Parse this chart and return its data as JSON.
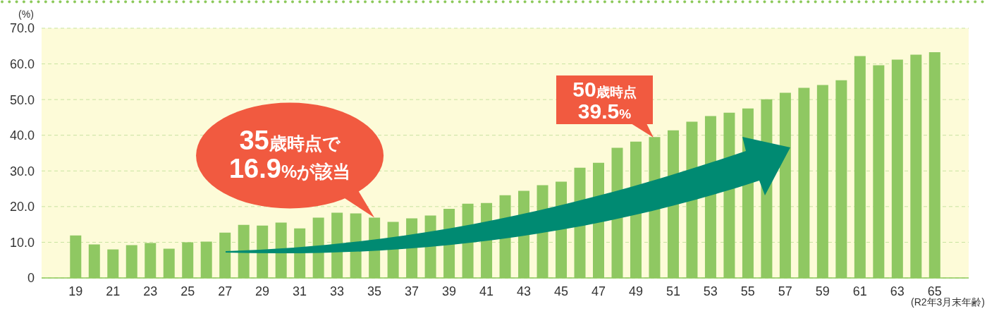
{
  "chart_data": {
    "type": "bar",
    "ylabel": "(%)",
    "categories": [
      "19",
      null,
      "21",
      null,
      "23",
      null,
      "25",
      null,
      "27",
      null,
      "29",
      null,
      "31",
      null,
      "33",
      null,
      "35",
      null,
      "37",
      null,
      "39",
      null,
      "41",
      null,
      "43",
      null,
      "45",
      null,
      "47",
      null,
      "49",
      null,
      "51",
      null,
      "53",
      null,
      "55",
      null,
      "57",
      null,
      "59",
      null,
      "61",
      null,
      "63",
      null,
      "65"
    ],
    "values": [
      11.9,
      9.4,
      8.0,
      9.2,
      9.8,
      8.2,
      10.0,
      10.2,
      12.7,
      14.9,
      14.7,
      15.5,
      13.9,
      16.9,
      18.3,
      18.1,
      16.9,
      15.7,
      16.7,
      17.5,
      19.4,
      20.8,
      21.0,
      23.2,
      24.4,
      26.0,
      27.0,
      30.9,
      32.3,
      36.5,
      38.2,
      39.5,
      41.4,
      43.8,
      45.4,
      46.3,
      47.5,
      50.1,
      51.9,
      53.3,
      54.1,
      55.4,
      62.2,
      59.6,
      61.2,
      62.6,
      63.3
    ],
    "color": "#8fc862",
    "ylim": [
      0,
      70
    ],
    "yticks": [
      0,
      {
        "value": 10,
        "label": "10.0"
      },
      {
        "value": 20,
        "label": "20.0"
      },
      {
        "value": 30,
        "label": "30.0"
      },
      {
        "value": 40,
        "label": "40.0"
      },
      {
        "value": 50,
        "label": "50.0"
      },
      {
        "value": 60,
        "label": "60.0"
      },
      {
        "value": 70,
        "label": "70.0"
      }
    ],
    "grid": "y",
    "annotations": [
      {
        "text": "35歳時点で\n16.9%が該当",
        "x": "35",
        "y": 16.9
      },
      "50歳時点\n39.5%",
      "(R2年3月末年齢)"
    ]
  }
}
